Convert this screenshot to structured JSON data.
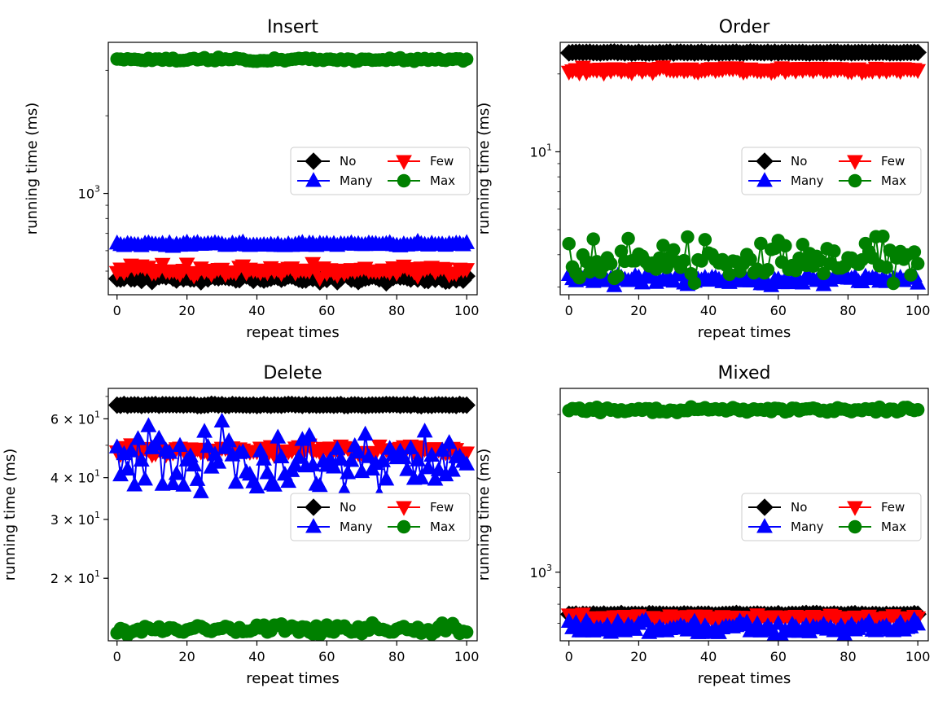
{
  "chart_data": [
    {
      "type": "line",
      "title": "Insert",
      "xlabel": "repeat times",
      "ylabel": "running time (ms)",
      "yscale": "log",
      "xlim": [
        -2.5,
        103
      ],
      "ylim": [
        405,
        3850
      ],
      "xticks": [
        0,
        20,
        40,
        60,
        80,
        100
      ],
      "yticks": [
        {
          "value": 1000,
          "base": "10",
          "exp": "3"
        }
      ],
      "legend": {
        "position": "center-right",
        "columns": 2
      },
      "series": [
        {
          "name": "No",
          "color": "#000000",
          "marker": "diamond",
          "mean": 470,
          "jitter": 0.02,
          "seed": 11
        },
        {
          "name": "Few",
          "color": "#ff0000",
          "marker": "triangle-down",
          "mean": 505,
          "jitter": 0.035,
          "seed": 12
        },
        {
          "name": "Many",
          "color": "#0000ff",
          "marker": "triangle-up",
          "mean": 635,
          "jitter": 0.012,
          "seed": 13
        },
        {
          "name": "Max",
          "color": "#008000",
          "marker": "circle",
          "mean": 3300,
          "jitter": 0.01,
          "seed": 14
        }
      ]
    },
    {
      "type": "line",
      "title": "Order",
      "xlabel": "repeat times",
      "ylabel": "running time (ms)",
      "yscale": "log",
      "xlim": [
        -2.5,
        103
      ],
      "ylim": [
        2.8,
        26.5
      ],
      "xticks": [
        0,
        20,
        40,
        60,
        80,
        100
      ],
      "yticks": [
        {
          "value": 10,
          "base": "10",
          "exp": "1"
        }
      ],
      "legend": {
        "position": "center-right",
        "columns": 2
      },
      "series": [
        {
          "name": "No",
          "color": "#000000",
          "marker": "diamond",
          "mean": 24.2,
          "jitter": 0.003,
          "seed": 21
        },
        {
          "name": "Few",
          "color": "#ff0000",
          "marker": "triangle-down",
          "mean": 20.8,
          "jitter": 0.015,
          "seed": 22
        },
        {
          "name": "Many",
          "color": "#0000ff",
          "marker": "triangle-up",
          "mean": 3.2,
          "jitter": 0.03,
          "seed": 23
        },
        {
          "name": "Max",
          "color": "#008000",
          "marker": "circle",
          "mean": 3.8,
          "jitter": 0.12,
          "seed": 24
        }
      ]
    },
    {
      "type": "line",
      "title": "Delete",
      "xlabel": "repeat times",
      "ylabel": "running time (ms)",
      "yscale": "log",
      "xlim": [
        -2.5,
        103
      ],
      "ylim": [
        13,
        74
      ],
      "xticks": [
        0,
        20,
        40,
        60,
        80,
        100
      ],
      "yticks": [
        {
          "value": 20,
          "base": "2 × 10",
          "exp": "1"
        },
        {
          "value": 30,
          "base": "3 × 10",
          "exp": "1"
        },
        {
          "value": 40,
          "base": "4 × 10",
          "exp": "1"
        },
        {
          "value": 60,
          "base": "6 × 10",
          "exp": "1"
        }
      ],
      "legend": {
        "position": "center-right",
        "columns": 2
      },
      "series": [
        {
          "name": "No",
          "color": "#000000",
          "marker": "diamond",
          "mean": 66,
          "jitter": 0.003,
          "seed": 31
        },
        {
          "name": "Few",
          "color": "#ff0000",
          "marker": "triangle-down",
          "mean": 48.5,
          "jitter": 0.02,
          "seed": 32
        },
        {
          "name": "Many",
          "color": "#0000ff",
          "marker": "triangle-up",
          "mean": 45,
          "jitter": 0.14,
          "seed": 33
        },
        {
          "name": "Max",
          "color": "#008000",
          "marker": "circle",
          "mean": 14.1,
          "jitter": 0.025,
          "seed": 34
        }
      ]
    },
    {
      "type": "line",
      "title": "Mixed",
      "xlabel": "repeat times",
      "ylabel": "running time (ms)",
      "yscale": "log",
      "xlim": [
        -2.5,
        103
      ],
      "ylim": [
        620,
        3600
      ],
      "xticks": [
        0,
        20,
        40,
        60,
        80,
        100
      ],
      "yticks": [
        {
          "value": 1000,
          "base": "10",
          "exp": "3"
        }
      ],
      "legend": {
        "position": "center-right",
        "columns": 2
      },
      "series": [
        {
          "name": "No",
          "color": "#000000",
          "marker": "diamond",
          "mean": 745,
          "jitter": 0.004,
          "seed": 41
        },
        {
          "name": "Few",
          "color": "#ff0000",
          "marker": "triangle-down",
          "mean": 730,
          "jitter": 0.012,
          "seed": 42
        },
        {
          "name": "Many",
          "color": "#0000ff",
          "marker": "triangle-up",
          "mean": 680,
          "jitter": 0.03,
          "seed": 43
        },
        {
          "name": "Max",
          "color": "#008000",
          "marker": "circle",
          "mean": 3100,
          "jitter": 0.012,
          "seed": 44
        }
      ]
    }
  ]
}
